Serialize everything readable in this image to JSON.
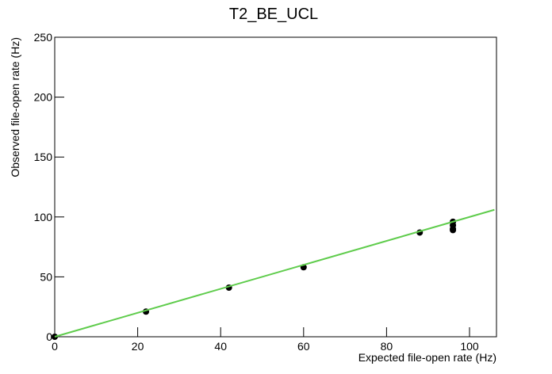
{
  "chart_data": {
    "type": "scatter",
    "title": "T2_BE_UCL",
    "x_label": "Expected file-open rate (Hz)",
    "y_label": "Observed file-open rate (Hz)",
    "xlim": [
      0,
      106.5
    ],
    "ylim": [
      0,
      250
    ],
    "xticks": [
      0,
      20,
      40,
      60,
      80,
      100
    ],
    "yticks": [
      0,
      50,
      100,
      150,
      200,
      250
    ],
    "series": [
      {
        "type": "scatter",
        "color": "#000000",
        "x": [
          0,
          22,
          42,
          60,
          88,
          96,
          96,
          96,
          96
        ],
        "values": [
          0,
          21,
          41,
          58,
          87,
          96,
          93,
          90,
          89
        ]
      },
      {
        "type": "line",
        "color": "#5fcc4c",
        "x": [
          0,
          106
        ],
        "values": [
          0,
          106
        ]
      }
    ]
  }
}
